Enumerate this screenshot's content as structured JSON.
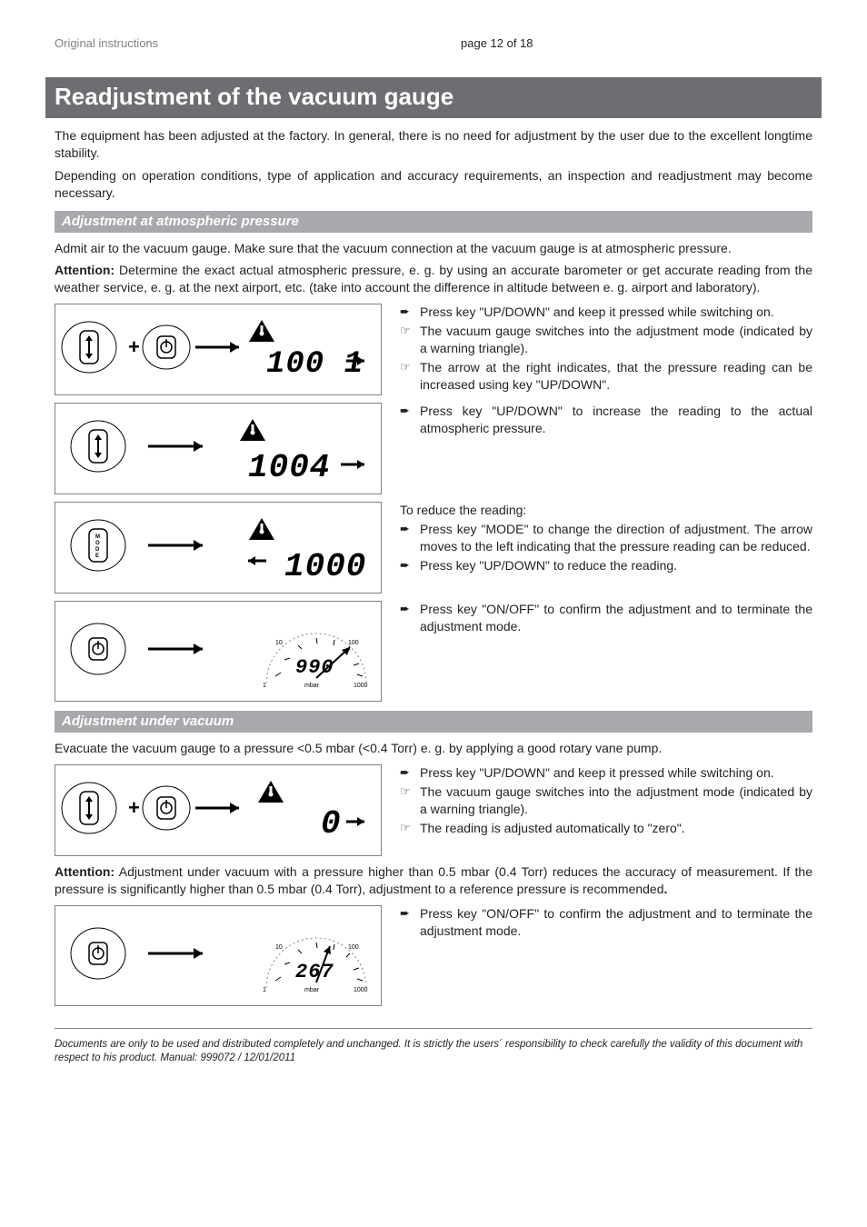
{
  "header": {
    "left": "Original instructions",
    "center": "page 12 of 18"
  },
  "main_title": "Readjustment of the vacuum gauge",
  "intro_p1": "The equipment has been adjusted at the factory. In general, there is no need for adjustment by the user due to the excellent longtime stability.",
  "intro_p2": "Depending on operation conditions, type of application and accuracy requirements, an inspection and readjustment may become necessary.",
  "sub1_title": "Adjustment at atmospheric pressure",
  "sub1_p1": "Admit air to the vacuum gauge. Make sure that the vacuum connection at the vacuum gauge is at atmospheric pressure.",
  "sub1_attention_label": "Attention:",
  "sub1_attention": " Determine the exact actual atmospheric pressure, e. g. by using an accurate barometer or get accurate reading from the weather service, e. g. at the next airport, etc. (take into account the difference in altitude between e. g. airport and laboratory).",
  "step1_items": [
    {
      "type": "arrow",
      "text": "Press key \"UP/DOWN\" and keep it pressed while switching on."
    },
    {
      "type": "hand",
      "text": "The vacuum gauge switches into the adjustment mode (indicated by a warning triangle)."
    },
    {
      "type": "hand",
      "text": "The arrow at the right indicates, that the pressure reading can be increased using key \"UP/DOWN\"."
    }
  ],
  "step2_items": [
    {
      "type": "arrow",
      "text": "Press key \"UP/DOWN\" to increase the reading to the actual atmospheric pressure."
    }
  ],
  "step3_lead": "To reduce the reading:",
  "step3_items": [
    {
      "type": "arrow",
      "text": "Press key \"MODE\" to change the direction of adjustment. The arrow moves to the left indicating that the pressure reading can be reduced."
    },
    {
      "type": "arrow",
      "text": "Press key \"UP/DOWN\" to reduce the reading."
    }
  ],
  "step4_items": [
    {
      "type": "arrow",
      "text": "Press key \"ON/OFF\" to confirm the adjustment and to terminate the adjustment mode."
    }
  ],
  "sub2_title": "Adjustment under vacuum",
  "sub2_p1": "Evacuate the vacuum gauge to a pressure <0.5 mbar (<0.4 Torr) e. g. by applying a good rotary vane pump.",
  "sub2_step1_items": [
    {
      "type": "arrow",
      "text": "Press key \"UP/DOWN\" and keep it pressed while switching on."
    },
    {
      "type": "hand",
      "text": "The vacuum gauge switches into the adjustment mode (indicated by a warning triangle)."
    },
    {
      "type": "hand",
      "text": "The reading is adjusted automatically to \"zero\"."
    }
  ],
  "sub2_attention_label": "Attention:",
  "sub2_attention": " Adjustment under vacuum with a pressure higher than 0.5 mbar (0.4 Torr) reduces the accuracy of measurement. If the pressure is significantly higher than 0.5 mbar (0.4 Torr), adjustment to a reference pressure is recommended",
  "sub2_attention_dot": ".",
  "sub2_step2_items": [
    {
      "type": "arrow",
      "text": "Press key \"ON/OFF\" to confirm the adjustment and to terminate the adjustment mode."
    }
  ],
  "footer": "Documents are only to be used and distributed completely and unchanged. It is strictly the users´ responsibility to check carefully the validity of this document with respect to his product. Manual: 999072 / 12/01/2011",
  "diagrams": {
    "d1": {
      "display": "100 1",
      "arrow": "right",
      "left_btn": "updown",
      "plus": true,
      "right_btn": "power"
    },
    "d2": {
      "display": "1004",
      "arrow": "right",
      "left_btn": "updown"
    },
    "d3": {
      "display": "1000",
      "arrow": "left",
      "left_btn": "mode"
    },
    "d4": {
      "display": "990",
      "left_btn": "power",
      "gauge": true
    },
    "d5": {
      "display": "0",
      "arrow": "right",
      "left_btn": "updown",
      "plus": true,
      "right_btn": "power"
    },
    "d6": {
      "display": "267",
      "left_btn": "power",
      "gauge": true
    }
  },
  "colors": {
    "banner_bg": "#6d6e71",
    "sub_bg": "#a7a9ac",
    "text": "#231f20",
    "grey": "#808080",
    "line": "#000000"
  },
  "labels": {
    "mode": "MODE",
    "mbar": "mbar",
    "g10": "10",
    "g100": "100",
    "g1": "1",
    "g1000": "1000"
  }
}
